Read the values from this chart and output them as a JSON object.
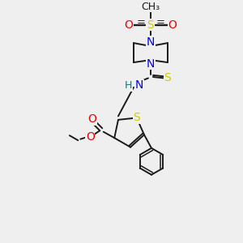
{
  "background_color": "#efefef",
  "bond_color": "#1a1a1a",
  "colors": {
    "N": "#0000ee",
    "O": "#ee0000",
    "S": "#cccc00",
    "C": "#1a1a1a",
    "H": "#008080"
  },
  "font_size": 8.5,
  "bond_lw": 1.4
}
